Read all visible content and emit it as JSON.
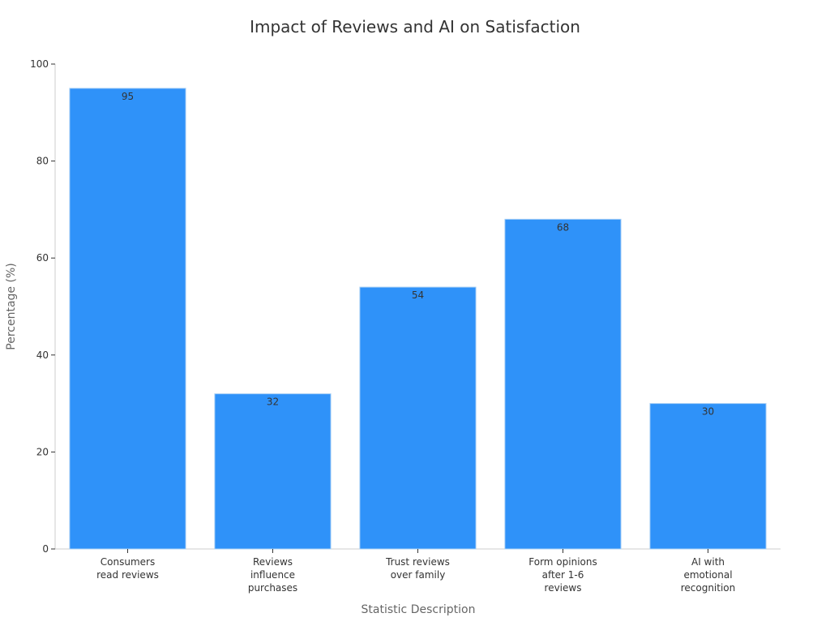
{
  "chart_data": {
    "type": "bar",
    "title": "Impact of Reviews and AI on Satisfaction",
    "xlabel": "Statistic Description",
    "ylabel": "Percentage (%)",
    "categories": [
      "Consumers\nread reviews",
      "Reviews\ninfluence\npurchases",
      "Trust reviews\nover family",
      "Form opinions\nafter 1-6\nreviews",
      "AI with\nemotional\nrecognition"
    ],
    "values": [
      95,
      32,
      54,
      68,
      30
    ],
    "data_labels": [
      "95",
      "32",
      "54",
      "68",
      "30"
    ],
    "ylim": [
      0,
      100
    ],
    "yticks": [
      0,
      20,
      40,
      60,
      80,
      100
    ],
    "grid": false,
    "legend": "none",
    "colors": {
      "bar": "#2f92f9",
      "bar_edge": "#a9d0f5",
      "axis": "#cccccc",
      "text": "#333333",
      "label": "#666666"
    }
  }
}
